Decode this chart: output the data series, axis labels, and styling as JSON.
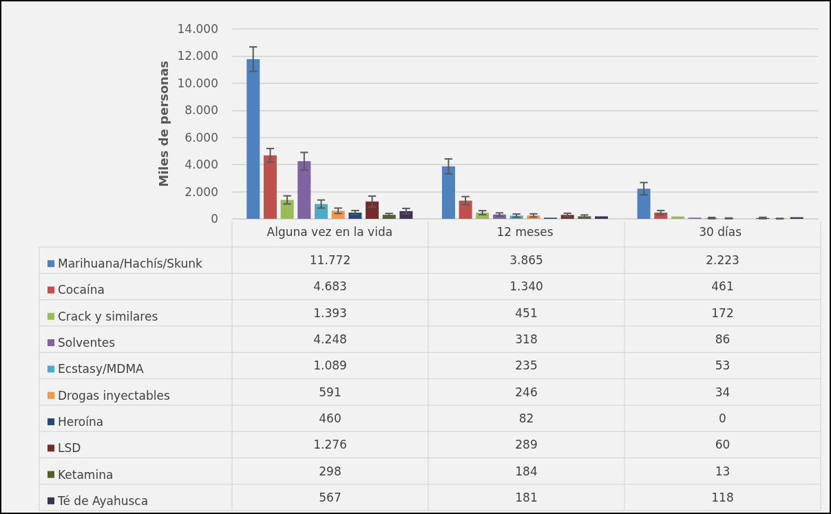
{
  "chart_data": {
    "type": "bar",
    "ylabel": "Miles de personas",
    "categories": [
      "Alguna vez en la vida",
      "12 meses",
      "30 días"
    ],
    "series": [
      {
        "name": "Marihuana/Hachís/Skunk",
        "color": "#4f81bd",
        "values": [
          11772,
          3865,
          2223
        ],
        "value_labels": [
          "11.772",
          "3.865",
          "2.223"
        ],
        "errors": [
          900,
          550,
          450
        ]
      },
      {
        "name": "Cocaína",
        "color": "#c0504d",
        "values": [
          4683,
          1340,
          461
        ],
        "value_labels": [
          "4.683",
          "1.340",
          "461"
        ],
        "errors": [
          500,
          300,
          150
        ]
      },
      {
        "name": "Crack y similares",
        "color": "#9bbb59",
        "values": [
          1393,
          451,
          172
        ],
        "value_labels": [
          "1.393",
          "451",
          "172"
        ],
        "errors": [
          300,
          150,
          null
        ]
      },
      {
        "name": "Solventes",
        "color": "#8064a2",
        "values": [
          4248,
          318,
          86
        ],
        "value_labels": [
          "4.248",
          "318",
          "86"
        ],
        "errors": [
          650,
          120,
          null
        ]
      },
      {
        "name": "Ecstasy/MDMA",
        "color": "#4bacc6",
        "values": [
          1089,
          235,
          53
        ],
        "value_labels": [
          "1.089",
          "235",
          "53"
        ],
        "errors": [
          300,
          120,
          50
        ]
      },
      {
        "name": "Drogas inyectables",
        "color": "#f79646",
        "values": [
          591,
          246,
          34
        ],
        "value_labels": [
          "591",
          "246",
          "34"
        ],
        "errors": [
          200,
          120,
          30
        ]
      },
      {
        "name": "Heroína",
        "color": "#1f497d",
        "values": [
          460,
          82,
          0
        ],
        "value_labels": [
          "460",
          "82",
          "0"
        ],
        "errors": [
          150,
          null,
          null
        ]
      },
      {
        "name": "LSD",
        "color": "#772c2a",
        "values": [
          1276,
          289,
          60
        ],
        "value_labels": [
          "1.276",
          "289",
          "60"
        ],
        "errors": [
          400,
          120,
          50
        ]
      },
      {
        "name": "Ketamina",
        "color": "#4f6228",
        "values": [
          298,
          184,
          13
        ],
        "value_labels": [
          "298",
          "184",
          "13"
        ],
        "errors": [
          100,
          100,
          20
        ]
      },
      {
        "name": "Té de Ayahusca",
        "color": "#403151",
        "values": [
          567,
          181,
          118
        ],
        "value_labels": [
          "567",
          "181",
          "118"
        ],
        "errors": [
          200,
          null,
          null
        ]
      }
    ],
    "ylim": [
      0,
      14000
    ],
    "yticks": [
      {
        "value": 0,
        "label": "0"
      },
      {
        "value": 2000,
        "label": "2.000"
      },
      {
        "value": 4000,
        "label": "4.000"
      },
      {
        "value": 6000,
        "label": "6.000"
      },
      {
        "value": 8000,
        "label": "8.000"
      },
      {
        "value": 10000,
        "label": "10.000"
      },
      {
        "value": 12000,
        "label": "12.000"
      },
      {
        "value": 14000,
        "label": "14.000"
      }
    ],
    "grid": "y",
    "legend": "bottom left"
  }
}
